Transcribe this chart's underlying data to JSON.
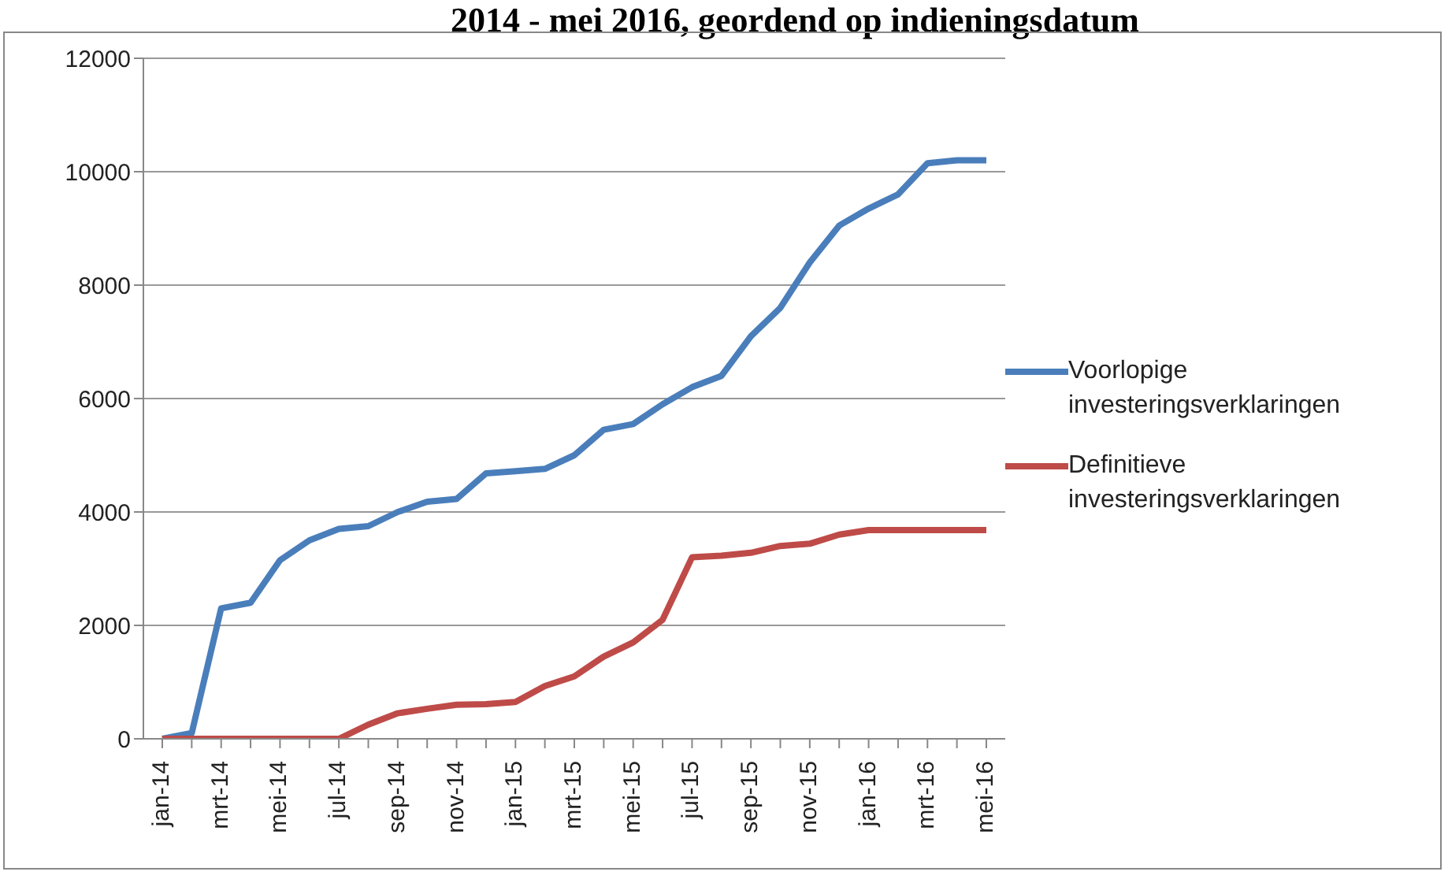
{
  "chart_data": {
    "type": "line",
    "title": "2014 - mei 2016, geordend op indieningsdatum",
    "categories": [
      "jan-14",
      null,
      "mrt-14",
      null,
      "mei-14",
      null,
      "jul-14",
      null,
      "sep-14",
      null,
      "nov-14",
      null,
      "jan-15",
      null,
      "mrt-15",
      null,
      "mei-15",
      null,
      "jul-15",
      null,
      "sep-15",
      null,
      "nov-15",
      null,
      "jan-16",
      null,
      "mrt-16",
      null,
      "mei-16"
    ],
    "series": [
      {
        "name": "Voorlopige investeringsverklaringen",
        "color": "#4a7ebb",
        "values": [
          0,
          100,
          2300,
          2400,
          3150,
          3500,
          3700,
          3750,
          4000,
          4180,
          4230,
          4680,
          4720,
          4760,
          5000,
          5450,
          5550,
          5900,
          6200,
          6400,
          7100,
          7600,
          8400,
          9050,
          9350,
          9600,
          10150,
          10200,
          10200
        ]
      },
      {
        "name": "Definitieve investeringsverklaringen",
        "color": "#be4b48",
        "values": [
          0,
          0,
          0,
          0,
          0,
          0,
          0,
          250,
          450,
          530,
          600,
          610,
          650,
          930,
          1100,
          1450,
          1700,
          2100,
          3200,
          3230,
          3280,
          3400,
          3440,
          3600,
          3680,
          3680,
          3680,
          3680,
          3680
        ]
      }
    ],
    "ylim": [
      0,
      12000
    ],
    "yticks": [
      0,
      2000,
      4000,
      6000,
      8000,
      10000,
      12000
    ],
    "grid": "y",
    "legend": "right",
    "marker": "none",
    "line_style": "solid"
  }
}
